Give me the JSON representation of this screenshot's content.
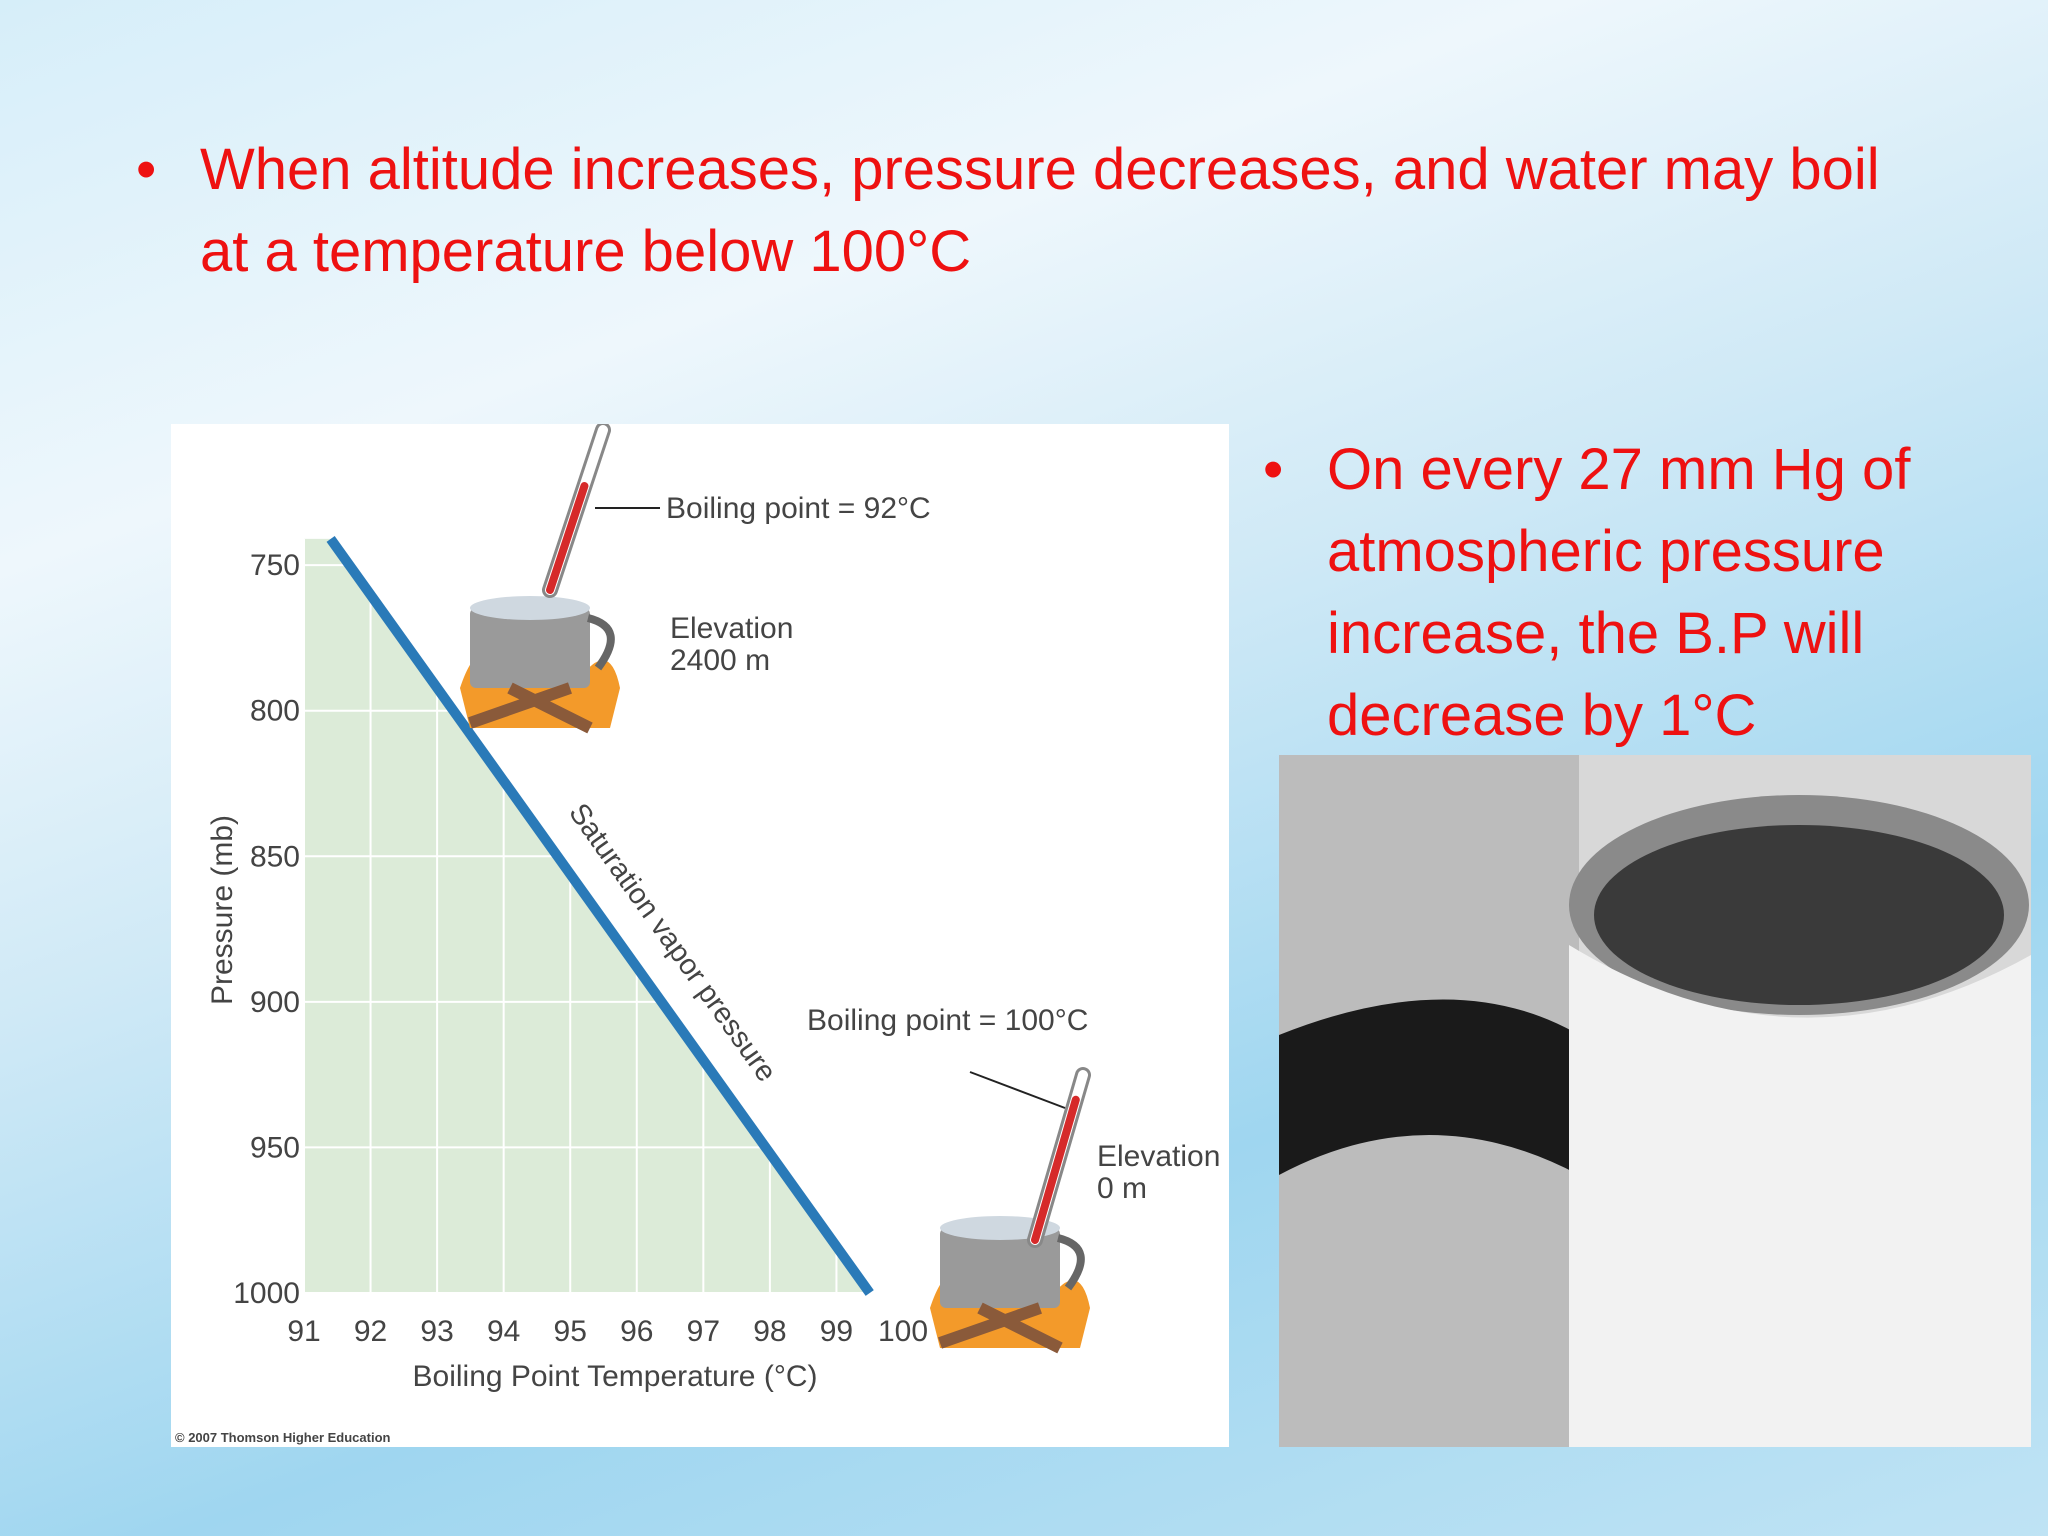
{
  "bullets": [
    "When altitude increases, pressure decreases, and water may boil at a temperature below 100°C",
    "On every 27 mm Hg of atmospheric pressure increase, the B.P will decrease by 1°C"
  ],
  "chart_data": {
    "type": "line",
    "x_label": "Boiling Point Temperature (°C)",
    "y_label": "Pressure (mb)",
    "x": [
      91.4,
      99.5
    ],
    "series": [
      {
        "name": "Saturation vapor pressure",
        "color": "#2a7ab8",
        "values": [
          741,
          1000
        ]
      }
    ],
    "xlim": [
      91,
      100
    ],
    "xticks": [
      91,
      92,
      93,
      94,
      95,
      96,
      97,
      98,
      99,
      100
    ],
    "ylim": [
      740,
      1000
    ],
    "yticks": [
      750,
      800,
      850,
      900,
      950,
      1000
    ],
    "y_inverted": true,
    "grid": true,
    "annotations": {
      "top_boiling": "Boiling point = 92°C",
      "top_elevation": [
        "Elevation",
        "2400 m"
      ],
      "bottom_boiling": "Boiling point = 100°C",
      "bottom_elevation": [
        "Elevation",
        "0 m"
      ]
    },
    "credit": "© 2007 Thomson Higher Education"
  }
}
